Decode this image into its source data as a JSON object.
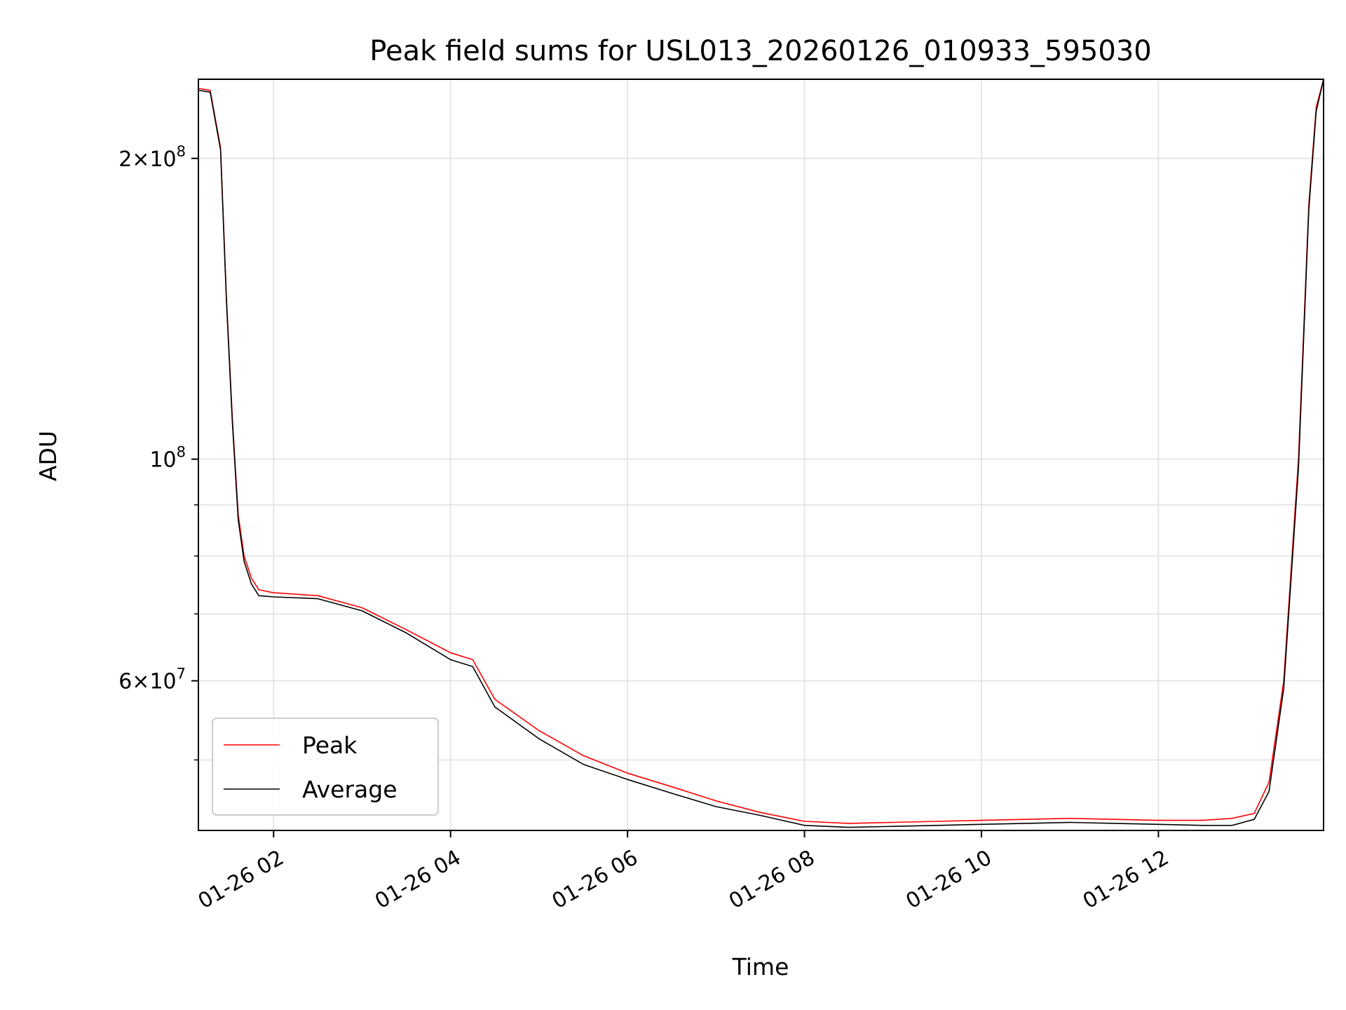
{
  "chart_data": {
    "type": "line",
    "title": "Peak field sums for USL013_20260126_010933_595030",
    "xlabel": "Time",
    "ylabel": "ADU",
    "x_scale": "time",
    "y_scale": "log",
    "xlim": [
      "2026-01-26 01:09",
      "2026-01-26 13:52"
    ],
    "ylim": [
      42500000,
      240000000
    ],
    "x_ticks": [
      {
        "value": "2026-01-26 02:00",
        "label": "01-26 02"
      },
      {
        "value": "2026-01-26 04:00",
        "label": "01-26 04"
      },
      {
        "value": "2026-01-26 06:00",
        "label": "01-26 06"
      },
      {
        "value": "2026-01-26 08:00",
        "label": "01-26 08"
      },
      {
        "value": "2026-01-26 10:00",
        "label": "01-26 10"
      },
      {
        "value": "2026-01-26 12:00",
        "label": "01-26 12"
      }
    ],
    "y_ticks": [
      {
        "value": 60000000,
        "base": "6",
        "exp": "7"
      },
      {
        "value": 100000000,
        "base": "",
        "exp": "8"
      },
      {
        "value": 200000000,
        "base": "2",
        "exp": "8"
      }
    ],
    "y_minor_ticks": [
      50000000,
      70000000,
      80000000,
      90000000
    ],
    "grid": true,
    "legend_position": "lower-left",
    "series": [
      {
        "name": "Peak",
        "color": "#ff0000",
        "x": [
          "2026-01-26 01:09",
          "2026-01-26 01:17",
          "2026-01-26 01:24",
          "2026-01-26 01:28",
          "2026-01-26 01:32",
          "2026-01-26 01:36",
          "2026-01-26 01:40",
          "2026-01-26 01:45",
          "2026-01-26 01:50",
          "2026-01-26 02:00",
          "2026-01-26 02:30",
          "2026-01-26 03:00",
          "2026-01-26 03:30",
          "2026-01-26 04:00",
          "2026-01-26 04:15",
          "2026-01-26 04:30",
          "2026-01-26 05:00",
          "2026-01-26 05:30",
          "2026-01-26 06:00",
          "2026-01-26 06:30",
          "2026-01-26 07:00",
          "2026-01-26 07:30",
          "2026-01-26 08:00",
          "2026-01-26 08:30",
          "2026-01-26 09:00",
          "2026-01-26 09:30",
          "2026-01-26 10:00",
          "2026-01-26 10:30",
          "2026-01-26 11:00",
          "2026-01-26 11:30",
          "2026-01-26 12:00",
          "2026-01-26 12:30",
          "2026-01-26 12:50",
          "2026-01-26 13:05",
          "2026-01-26 13:15",
          "2026-01-26 13:25",
          "2026-01-26 13:35",
          "2026-01-26 13:42",
          "2026-01-26 13:47",
          "2026-01-26 13:52"
        ],
        "values": [
          235000000,
          234000000,
          205000000,
          145000000,
          110000000,
          88000000,
          80000000,
          76000000,
          74000000,
          73500000,
          73000000,
          71000000,
          67500000,
          64000000,
          63000000,
          57500000,
          53500000,
          50500000,
          48500000,
          47000000,
          45500000,
          44300000,
          43400000,
          43200000,
          43300000,
          43400000,
          43500000,
          43600000,
          43700000,
          43600000,
          43500000,
          43500000,
          43700000,
          44200000,
          47500000,
          60000000,
          100000000,
          180000000,
          225000000,
          240000000
        ]
      },
      {
        "name": "Average",
        "color": "#000000",
        "x": [
          "2026-01-26 01:09",
          "2026-01-26 01:17",
          "2026-01-26 01:24",
          "2026-01-26 01:28",
          "2026-01-26 01:32",
          "2026-01-26 01:36",
          "2026-01-26 01:40",
          "2026-01-26 01:45",
          "2026-01-26 01:50",
          "2026-01-26 02:00",
          "2026-01-26 02:30",
          "2026-01-26 03:00",
          "2026-01-26 03:30",
          "2026-01-26 04:00",
          "2026-01-26 04:15",
          "2026-01-26 04:30",
          "2026-01-26 05:00",
          "2026-01-26 05:30",
          "2026-01-26 06:00",
          "2026-01-26 06:30",
          "2026-01-26 07:00",
          "2026-01-26 07:30",
          "2026-01-26 08:00",
          "2026-01-26 08:30",
          "2026-01-26 09:00",
          "2026-01-26 09:30",
          "2026-01-26 10:00",
          "2026-01-26 10:30",
          "2026-01-26 11:00",
          "2026-01-26 11:30",
          "2026-01-26 12:00",
          "2026-01-26 12:30",
          "2026-01-26 12:50",
          "2026-01-26 13:05",
          "2026-01-26 13:15",
          "2026-01-26 13:25",
          "2026-01-26 13:35",
          "2026-01-26 13:42",
          "2026-01-26 13:47",
          "2026-01-26 13:52"
        ],
        "values": [
          234000000,
          233000000,
          204000000,
          144000000,
          109000000,
          87000000,
          79000000,
          75000000,
          73000000,
          72800000,
          72500000,
          70500000,
          67000000,
          63000000,
          62000000,
          56500000,
          52500000,
          49500000,
          47800000,
          46300000,
          44900000,
          44000000,
          43000000,
          42800000,
          42900000,
          43000000,
          43100000,
          43200000,
          43300000,
          43200000,
          43100000,
          43000000,
          43000000,
          43600000,
          46500000,
          59000000,
          98000000,
          178000000,
          223000000,
          240000000
        ]
      }
    ]
  }
}
